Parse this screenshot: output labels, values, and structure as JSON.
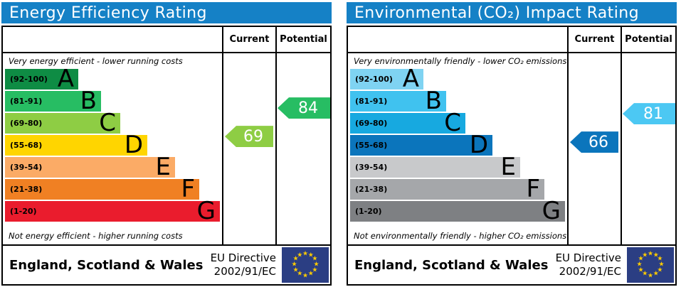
{
  "panels": [
    {
      "header": {
        "title": "Energy Efficiency Rating",
        "bg": "#1581c6"
      },
      "columns": {
        "current": "Current",
        "potential": "Potential"
      },
      "top_caption": "Very energy efficient - lower running costs",
      "bottom_caption": "Not energy efficient - higher running costs",
      "bands": [
        {
          "range": "(92-100)",
          "letter": "A",
          "color": "#0e8c44"
        },
        {
          "range": "(81-91)",
          "letter": "B",
          "color": "#27bd63"
        },
        {
          "range": "(69-80)",
          "letter": "C",
          "color": "#8ecd44"
        },
        {
          "range": "(55-68)",
          "letter": "D",
          "color": "#ffd500"
        },
        {
          "range": "(39-54)",
          "letter": "E",
          "color": "#fbab66"
        },
        {
          "range": "(21-38)",
          "letter": "F",
          "color": "#f08023"
        },
        {
          "range": "(1-20)",
          "letter": "G",
          "color": "#ea1c2d"
        }
      ],
      "current": {
        "value": 69,
        "color": "#8ecd44"
      },
      "potential": {
        "value": 84,
        "color": "#27bd63"
      },
      "footer": {
        "region": "England, Scotland & Wales",
        "directive_line1": "EU Directive",
        "directive_line2": "2002/91/EC"
      }
    },
    {
      "header": {
        "title": "Environmental (CO₂) Impact Rating",
        "bg": "#1581c6"
      },
      "columns": {
        "current": "Current",
        "potential": "Potential"
      },
      "top_caption": "Very environmentally friendly - lower CO₂ emissions",
      "bottom_caption": "Not environmentally friendly - higher CO₂ emissions",
      "bands": [
        {
          "range": "(92-100)",
          "letter": "A",
          "color": "#7fd3f2"
        },
        {
          "range": "(81-91)",
          "letter": "B",
          "color": "#40c2ef"
        },
        {
          "range": "(69-80)",
          "letter": "C",
          "color": "#17a9e0"
        },
        {
          "range": "(55-68)",
          "letter": "D",
          "color": "#0b75bc"
        },
        {
          "range": "(39-54)",
          "letter": "E",
          "color": "#c8c9cb"
        },
        {
          "range": "(21-38)",
          "letter": "F",
          "color": "#a5a7aa"
        },
        {
          "range": "(1-20)",
          "letter": "G",
          "color": "#7e8083"
        }
      ],
      "current": {
        "value": 66,
        "color": "#0b75bc"
      },
      "potential": {
        "value": 81,
        "color": "#4cc8f3"
      },
      "footer": {
        "region": "England, Scotland & Wales",
        "directive_line1": "EU Directive",
        "directive_line2": "2002/91/EC"
      }
    }
  ],
  "icons": {
    "eu_star_glyph": "★",
    "eu_flag_bg": "#2b3e83",
    "eu_star_color": "#ffcc00"
  },
  "chart_data": [
    {
      "type": "bar",
      "title": "Energy Efficiency Rating",
      "categories": [
        "A (92-100)",
        "B (81-91)",
        "C (69-80)",
        "D (55-68)",
        "E (39-54)",
        "F (21-38)",
        "G (1-20)"
      ],
      "band_colors": [
        "#0e8c44",
        "#27bd63",
        "#8ecd44",
        "#ffd500",
        "#fbab66",
        "#f08023",
        "#ea1c2d"
      ],
      "markers": {
        "current": 69,
        "potential": 84
      },
      "current_band": "C",
      "potential_band": "B",
      "value_range": [
        1,
        100
      ],
      "top_note": "Very energy efficient - lower running costs",
      "bottom_note": "Not energy efficient - higher running costs",
      "footer": "England, Scotland & Wales — EU Directive 2002/91/EC"
    },
    {
      "type": "bar",
      "title": "Environmental (CO₂) Impact Rating",
      "categories": [
        "A (92-100)",
        "B (81-91)",
        "C (69-80)",
        "D (55-68)",
        "E (39-54)",
        "F (21-38)",
        "G (1-20)"
      ],
      "band_colors": [
        "#7fd3f2",
        "#40c2ef",
        "#17a9e0",
        "#0b75bc",
        "#c8c9cb",
        "#a5a7aa",
        "#7e8083"
      ],
      "markers": {
        "current": 66,
        "potential": 81
      },
      "current_band": "D",
      "potential_band": "B",
      "value_range": [
        1,
        100
      ],
      "top_note": "Very environmentally friendly - lower CO₂ emissions",
      "bottom_note": "Not environmentally friendly - higher CO₂ emissions",
      "footer": "England, Scotland & Wales — EU Directive 2002/91/EC"
    }
  ]
}
